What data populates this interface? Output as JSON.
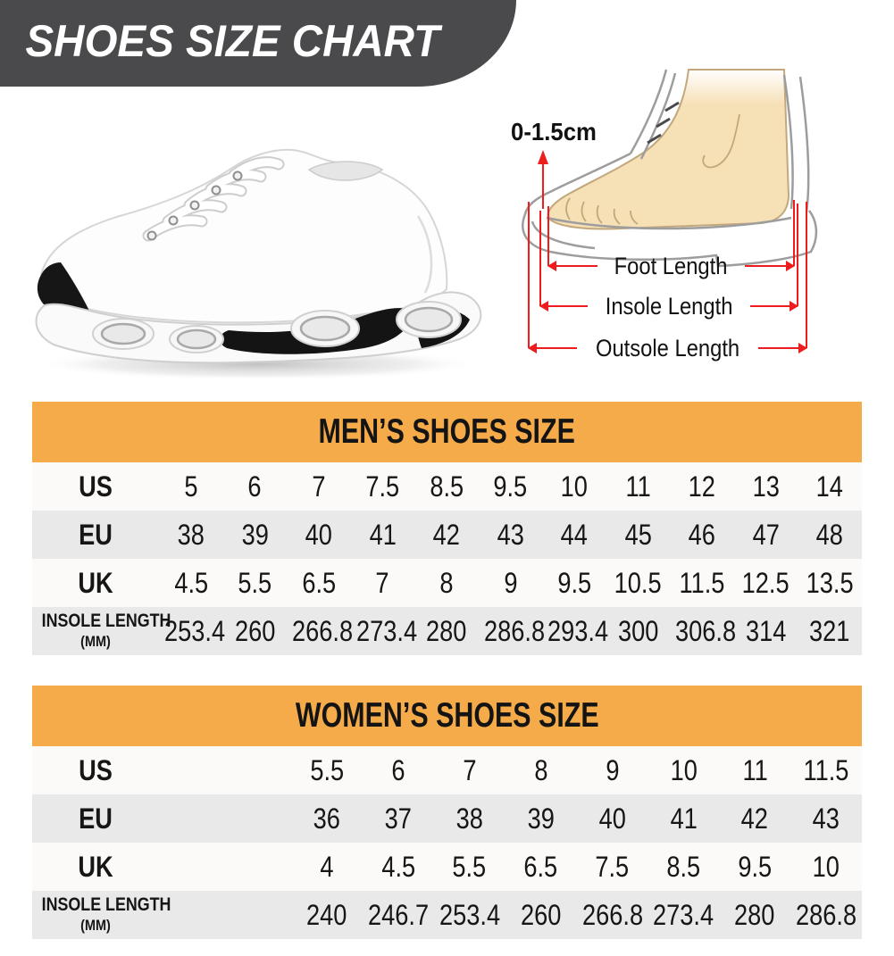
{
  "header": {
    "title": "SHOES SIZE CHART"
  },
  "diagram": {
    "gap_label": "0-1.5cm",
    "measurements": [
      "Foot Length",
      "Insole Length",
      "Outsole Length"
    ]
  },
  "tables": [
    {
      "title": "MEN’S SHOES SIZE",
      "rows": [
        {
          "label": "US",
          "values": [
            "5",
            "6",
            "7",
            "7.5",
            "8.5",
            "9.5",
            "10",
            "11",
            "12",
            "13",
            "14"
          ]
        },
        {
          "label": "EU",
          "values": [
            "38",
            "39",
            "40",
            "41",
            "42",
            "43",
            "44",
            "45",
            "46",
            "47",
            "48"
          ]
        },
        {
          "label": "UK",
          "values": [
            "4.5",
            "5.5",
            "6.5",
            "7",
            "8",
            "9",
            "9.5",
            "10.5",
            "11.5",
            "12.5",
            "13.5"
          ]
        },
        {
          "label": "INSOLE LENGTH",
          "sub": "(MM)",
          "values": [
            "253.4",
            "260",
            "266.8",
            "273.4",
            "280",
            "286.8",
            "293.4",
            "300",
            "306.8",
            "314",
            "321"
          ]
        }
      ]
    },
    {
      "title": "WOMEN’S SHOES SIZE",
      "rows": [
        {
          "label": "US",
          "values": [
            "5.5",
            "6",
            "7",
            "8",
            "9",
            "10",
            "11",
            "11.5"
          ]
        },
        {
          "label": "EU",
          "values": [
            "36",
            "37",
            "38",
            "39",
            "40",
            "41",
            "42",
            "43"
          ]
        },
        {
          "label": "UK",
          "values": [
            "4",
            "4.5",
            "5.5",
            "6.5",
            "7.5",
            "8.5",
            "9.5",
            "10"
          ]
        },
        {
          "label": "INSOLE LENGTH",
          "sub": "(MM)",
          "values": [
            "240",
            "246.7",
            "253.4",
            "260",
            "266.8",
            "273.4",
            "280",
            "286.8"
          ]
        }
      ]
    }
  ],
  "colors": {
    "accent_orange": "#f5ab49",
    "banner_gray": "#4a4a4c",
    "stripe_gray": "#e9e9e9",
    "measure_red": "#ee1c1c",
    "skin_tone": "#f6e0b6"
  }
}
